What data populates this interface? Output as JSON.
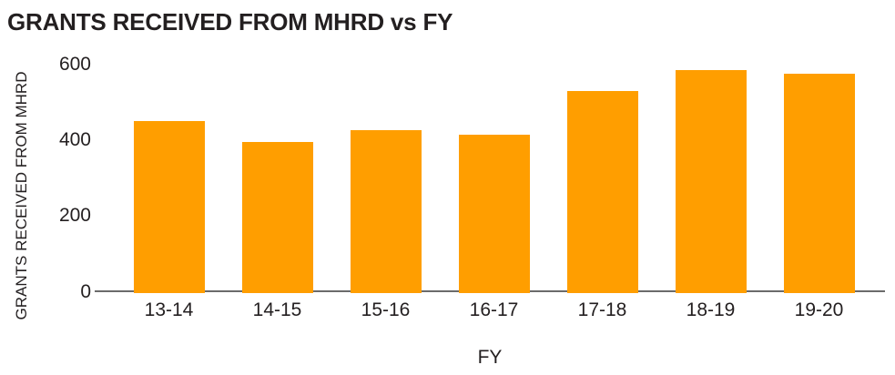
{
  "chart_data": {
    "type": "bar",
    "title": "GRANTS RECEIVED FROM MHRD vs FY",
    "xlabel": "FY",
    "ylabel": "GRANTS RECEIVED FROM MHRD",
    "categories": [
      "13-14",
      "14-15",
      "15-16",
      "16-17",
      "17-18",
      "18-19",
      "19-20"
    ],
    "values": [
      450,
      395,
      425,
      415,
      530,
      585,
      575
    ],
    "ylim": [
      0,
      600
    ],
    "yticks": [
      0,
      200,
      400,
      600
    ],
    "grid": false,
    "legend": false,
    "bar_color": "#FF9E00",
    "axis_line_color": "#6B6B6B",
    "text_color": "#231F20",
    "background_color": "#FFFFFF"
  }
}
